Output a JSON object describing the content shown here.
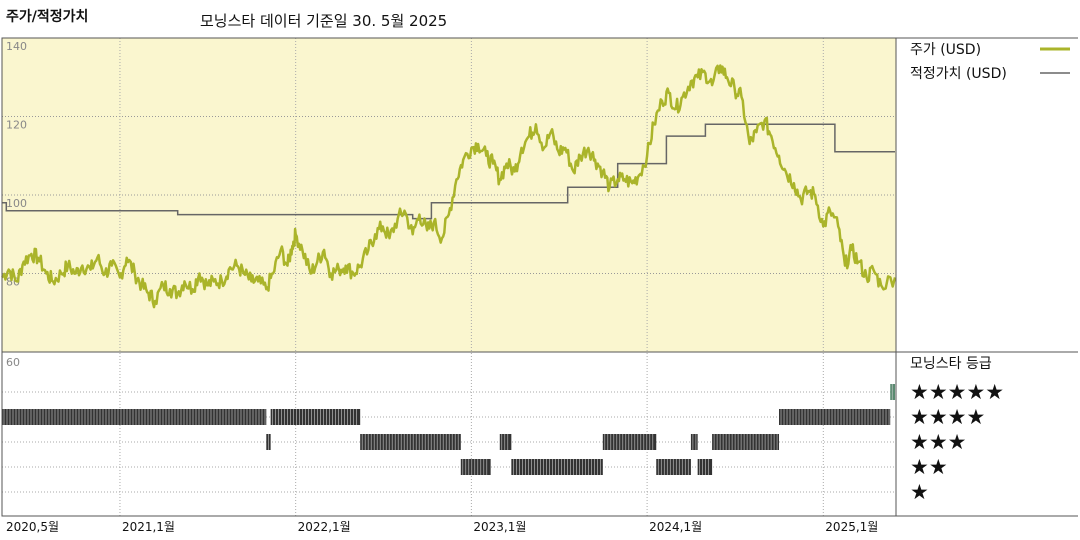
{
  "header": {
    "title": "주가/적정가치",
    "subtitle": "모닝스타 데이터 기준일 30. 5월 2025"
  },
  "colors": {
    "price": "#aab42a",
    "fair_value": "#666666",
    "panel_bg": "#faf6cf",
    "rating_bar": "#333333",
    "current_rating": "#5a8a70"
  },
  "chart_data": {
    "type": "line",
    "title": "주가/적정가치",
    "yticks": [
      60,
      80,
      100,
      120,
      140
    ],
    "ylim": [
      60,
      140
    ],
    "x_tick_labels": [
      "2020,5월",
      "2021,1월",
      "2022,1월",
      "2023,1월",
      "2024,1월",
      "2025,1월"
    ],
    "xlim": [
      "2020-05-01",
      "2025-06-01"
    ],
    "legend": {
      "placement": "right",
      "entries": [
        "주가 (USD)",
        "적정가치 (USD)"
      ]
    },
    "series": [
      {
        "name": "주가 (USD)",
        "points": [
          [
            "2020-05-01",
            79
          ],
          [
            "2020-05-15",
            81
          ],
          [
            "2020-06-01",
            78
          ],
          [
            "2020-06-15",
            83
          ],
          [
            "2020-07-01",
            85
          ],
          [
            "2020-07-15",
            84
          ],
          [
            "2020-08-01",
            80
          ],
          [
            "2020-08-15",
            78
          ],
          [
            "2020-09-01",
            80
          ],
          [
            "2020-09-15",
            82
          ],
          [
            "2020-10-01",
            80
          ],
          [
            "2020-10-15",
            82
          ],
          [
            "2020-11-01",
            81
          ],
          [
            "2020-11-15",
            84
          ],
          [
            "2020-12-01",
            80
          ],
          [
            "2020-12-15",
            82
          ],
          [
            "2021-01-01",
            79
          ],
          [
            "2021-01-15",
            84
          ],
          [
            "2021-02-01",
            80
          ],
          [
            "2021-02-15",
            77
          ],
          [
            "2021-03-01",
            75
          ],
          [
            "2021-03-15",
            73
          ],
          [
            "2021-04-01",
            77
          ],
          [
            "2021-04-15",
            76
          ],
          [
            "2021-05-01",
            75
          ],
          [
            "2021-05-15",
            78
          ],
          [
            "2021-06-01",
            76
          ],
          [
            "2021-06-15",
            80
          ],
          [
            "2021-07-01",
            77
          ],
          [
            "2021-07-15",
            78
          ],
          [
            "2021-08-01",
            78
          ],
          [
            "2021-08-15",
            81
          ],
          [
            "2021-09-01",
            82
          ],
          [
            "2021-09-15",
            80
          ],
          [
            "2021-10-01",
            78
          ],
          [
            "2021-10-15",
            78
          ],
          [
            "2021-11-01",
            76
          ],
          [
            "2021-11-15",
            80
          ],
          [
            "2021-12-01",
            86
          ],
          [
            "2021-12-15",
            82
          ],
          [
            "2021-12-25",
            87
          ],
          [
            "2022-01-01",
            90
          ],
          [
            "2022-01-15",
            86
          ],
          [
            "2022-02-01",
            80
          ],
          [
            "2022-02-15",
            83
          ],
          [
            "2022-03-01",
            86
          ],
          [
            "2022-03-15",
            80
          ],
          [
            "2022-04-01",
            81
          ],
          [
            "2022-04-15",
            82
          ],
          [
            "2022-05-01",
            80
          ],
          [
            "2022-05-15",
            82
          ],
          [
            "2022-06-01",
            86
          ],
          [
            "2022-06-15",
            90
          ],
          [
            "2022-07-01",
            92
          ],
          [
            "2022-07-15",
            89
          ],
          [
            "2022-08-01",
            94
          ],
          [
            "2022-08-15",
            96
          ],
          [
            "2022-09-01",
            90
          ],
          [
            "2022-09-15",
            95
          ],
          [
            "2022-10-01",
            91
          ],
          [
            "2022-10-15",
            93
          ],
          [
            "2022-11-01",
            89
          ],
          [
            "2022-11-15",
            95
          ],
          [
            "2022-12-01",
            104
          ],
          [
            "2022-12-15",
            109
          ],
          [
            "2023-01-01",
            112
          ],
          [
            "2023-01-15",
            113
          ],
          [
            "2023-02-01",
            110
          ],
          [
            "2023-02-15",
            108
          ],
          [
            "2023-03-01",
            104
          ],
          [
            "2023-03-15",
            108
          ],
          [
            "2023-04-01",
            106
          ],
          [
            "2023-04-15",
            112
          ],
          [
            "2023-05-01",
            115
          ],
          [
            "2023-05-15",
            118
          ],
          [
            "2023-06-01",
            112
          ],
          [
            "2023-06-15",
            116
          ],
          [
            "2023-07-01",
            111
          ],
          [
            "2023-07-15",
            112
          ],
          [
            "2023-08-01",
            106
          ],
          [
            "2023-08-15",
            110
          ],
          [
            "2023-09-01",
            112
          ],
          [
            "2023-09-15",
            109
          ],
          [
            "2023-10-01",
            106
          ],
          [
            "2023-10-15",
            102
          ],
          [
            "2023-11-01",
            104
          ],
          [
            "2023-11-15",
            104
          ],
          [
            "2023-12-01",
            103
          ],
          [
            "2023-12-15",
            105
          ],
          [
            "2024-01-01",
            110
          ],
          [
            "2024-01-15",
            118
          ],
          [
            "2024-02-01",
            124
          ],
          [
            "2024-02-15",
            126
          ],
          [
            "2024-03-01",
            122
          ],
          [
            "2024-03-15",
            125
          ],
          [
            "2024-04-01",
            129
          ],
          [
            "2024-04-15",
            130
          ],
          [
            "2024-05-01",
            131
          ],
          [
            "2024-05-15",
            128
          ],
          [
            "2024-06-01",
            133
          ],
          [
            "2024-06-15",
            130
          ],
          [
            "2024-07-01",
            127
          ],
          [
            "2024-07-15",
            125
          ],
          [
            "2024-08-01",
            113
          ],
          [
            "2024-08-15",
            116
          ],
          [
            "2024-09-01",
            119
          ],
          [
            "2024-09-15",
            115
          ],
          [
            "2024-10-01",
            110
          ],
          [
            "2024-10-15",
            106
          ],
          [
            "2024-11-01",
            103
          ],
          [
            "2024-11-15",
            99
          ],
          [
            "2024-12-01",
            101
          ],
          [
            "2024-12-15",
            100
          ],
          [
            "2025-01-01",
            92
          ],
          [
            "2025-01-15",
            96
          ],
          [
            "2025-02-01",
            92
          ],
          [
            "2025-02-15",
            82
          ],
          [
            "2025-03-01",
            86
          ],
          [
            "2025-03-15",
            83
          ],
          [
            "2025-04-01",
            79
          ],
          [
            "2025-04-15",
            81
          ],
          [
            "2025-05-01",
            77
          ],
          [
            "2025-05-30",
            79
          ]
        ]
      },
      {
        "name": "적정가치 (USD)",
        "points": [
          [
            "2020-05-01",
            98
          ],
          [
            "2020-05-10",
            98
          ],
          [
            "2020-05-10",
            96
          ],
          [
            "2021-05-01",
            96
          ],
          [
            "2021-05-01",
            95
          ],
          [
            "2022-09-01",
            95
          ],
          [
            "2022-09-01",
            94
          ],
          [
            "2022-10-10",
            94
          ],
          [
            "2022-10-10",
            98
          ],
          [
            "2023-07-20",
            98
          ],
          [
            "2023-07-20",
            102
          ],
          [
            "2023-11-01",
            102
          ],
          [
            "2023-11-01",
            108
          ],
          [
            "2024-02-10",
            108
          ],
          [
            "2024-02-10",
            115
          ],
          [
            "2024-05-01",
            115
          ],
          [
            "2024-05-01",
            118
          ],
          [
            "2025-01-25",
            118
          ],
          [
            "2025-01-25",
            111
          ],
          [
            "2025-05-30",
            111
          ]
        ]
      }
    ],
    "rating_panel": {
      "title": "모닝스타 등급",
      "levels": [
        5,
        4,
        3,
        2,
        1
      ],
      "level_labels": [
        "★★★★★",
        "★★★★",
        "★★★",
        "★★",
        "★"
      ],
      "current": 5,
      "segments": [
        {
          "rating": 4,
          "start": "2020-05-01",
          "end": "2021-11-01"
        },
        {
          "rating": 3,
          "start": "2021-11-01",
          "end": "2021-11-10"
        },
        {
          "rating": 4,
          "start": "2021-11-10",
          "end": "2022-05-15"
        },
        {
          "rating": 3,
          "start": "2022-05-15",
          "end": "2022-12-10"
        },
        {
          "rating": 2,
          "start": "2022-12-10",
          "end": "2023-02-10"
        },
        {
          "rating": 3,
          "start": "2023-03-01",
          "end": "2023-03-25"
        },
        {
          "rating": 2,
          "start": "2023-03-25",
          "end": "2023-10-01"
        },
        {
          "rating": 3,
          "start": "2023-10-01",
          "end": "2024-01-20"
        },
        {
          "rating": 2,
          "start": "2024-01-20",
          "end": "2024-04-01"
        },
        {
          "rating": 3,
          "start": "2024-04-01",
          "end": "2024-04-15"
        },
        {
          "rating": 2,
          "start": "2024-04-15",
          "end": "2024-05-15"
        },
        {
          "rating": 3,
          "start": "2024-05-15",
          "end": "2024-10-01"
        },
        {
          "rating": 4,
          "start": "2024-10-01",
          "end": "2025-05-20"
        },
        {
          "rating": 5,
          "start": "2025-05-20",
          "end": "2025-05-30"
        }
      ]
    }
  }
}
